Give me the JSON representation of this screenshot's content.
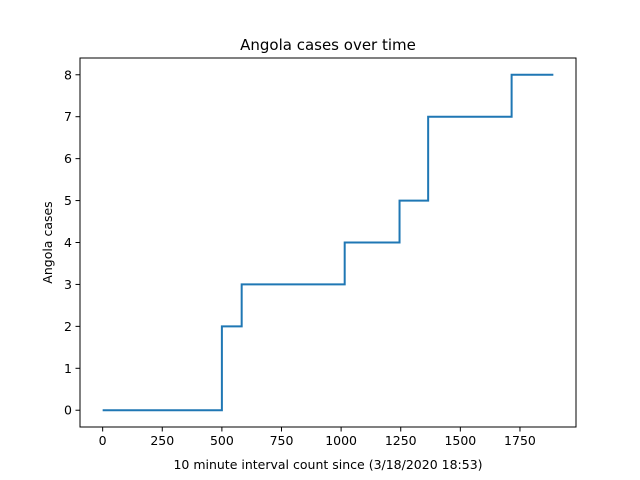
{
  "chart_data": {
    "type": "line",
    "drawstyle": "steps-post",
    "title": "Angola cases over time",
    "xlabel": "10 minute interval count since (3/18/2020 18:53)",
    "ylabel": "Angola cases",
    "xlim": [
      -95,
      1985
    ],
    "ylim": [
      -0.4,
      8.4
    ],
    "xticks": [
      0,
      250,
      500,
      750,
      1000,
      1250,
      1500,
      1750
    ],
    "xtick_labels": [
      "0",
      "250",
      "500",
      "750",
      "1000",
      "1250",
      "1500",
      "1750"
    ],
    "yticks": [
      0,
      1,
      2,
      3,
      4,
      5,
      6,
      7,
      8
    ],
    "ytick_labels": [
      "0",
      "1",
      "2",
      "3",
      "4",
      "5",
      "6",
      "7",
      "8"
    ],
    "grid": false,
    "legend": "none",
    "series": [
      {
        "color": "#1f77b4",
        "x": [
          0,
          500,
          583,
          1015,
          1245,
          1365,
          1715,
          1890
        ],
        "y": [
          0,
          2,
          3,
          4,
          5,
          7,
          8,
          8
        ]
      }
    ]
  }
}
